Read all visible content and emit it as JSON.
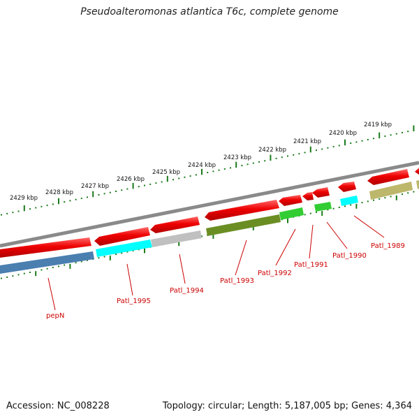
{
  "title": "Pseudoalteromonas atlantica T6c, complete genome",
  "footer": {
    "accession": "Accession: NC_008228",
    "info": "Topology: circular; Length: 5,187,005 bp; Genes: 4,364"
  },
  "ruler": {
    "unit": "kbp",
    "labels": [
      "2429 kbp",
      "2428 kbp",
      "2427 kbp",
      "2426 kbp",
      "2425 kbp",
      "2424 kbp",
      "2423 kbp",
      "2422 kbp",
      "2421 kbp",
      "2420 kbp",
      "2419 kbp"
    ]
  },
  "genes": [
    "pepN",
    "Patl_1995",
    "Patl_1994",
    "Patl_1993",
    "Patl_1992",
    "Patl_1991",
    "Patl_1990",
    "Patl_1989"
  ],
  "colors": {
    "cds": "#ee0000",
    "ruler": "#1a7a1a",
    "label": "#cc0000",
    "backbone": "#8a8a8a",
    "pepN": "#4a7fb0",
    "Patl_1995": "#00ffff",
    "Patl_1994": "#c0c0c0",
    "Patl_1993": "#6b8e23",
    "Patl_1992": "#32cd32",
    "Patl_1991": "#32cd32",
    "Patl_1990": "#00ffff",
    "Patl_1989": "#bdb76b"
  }
}
